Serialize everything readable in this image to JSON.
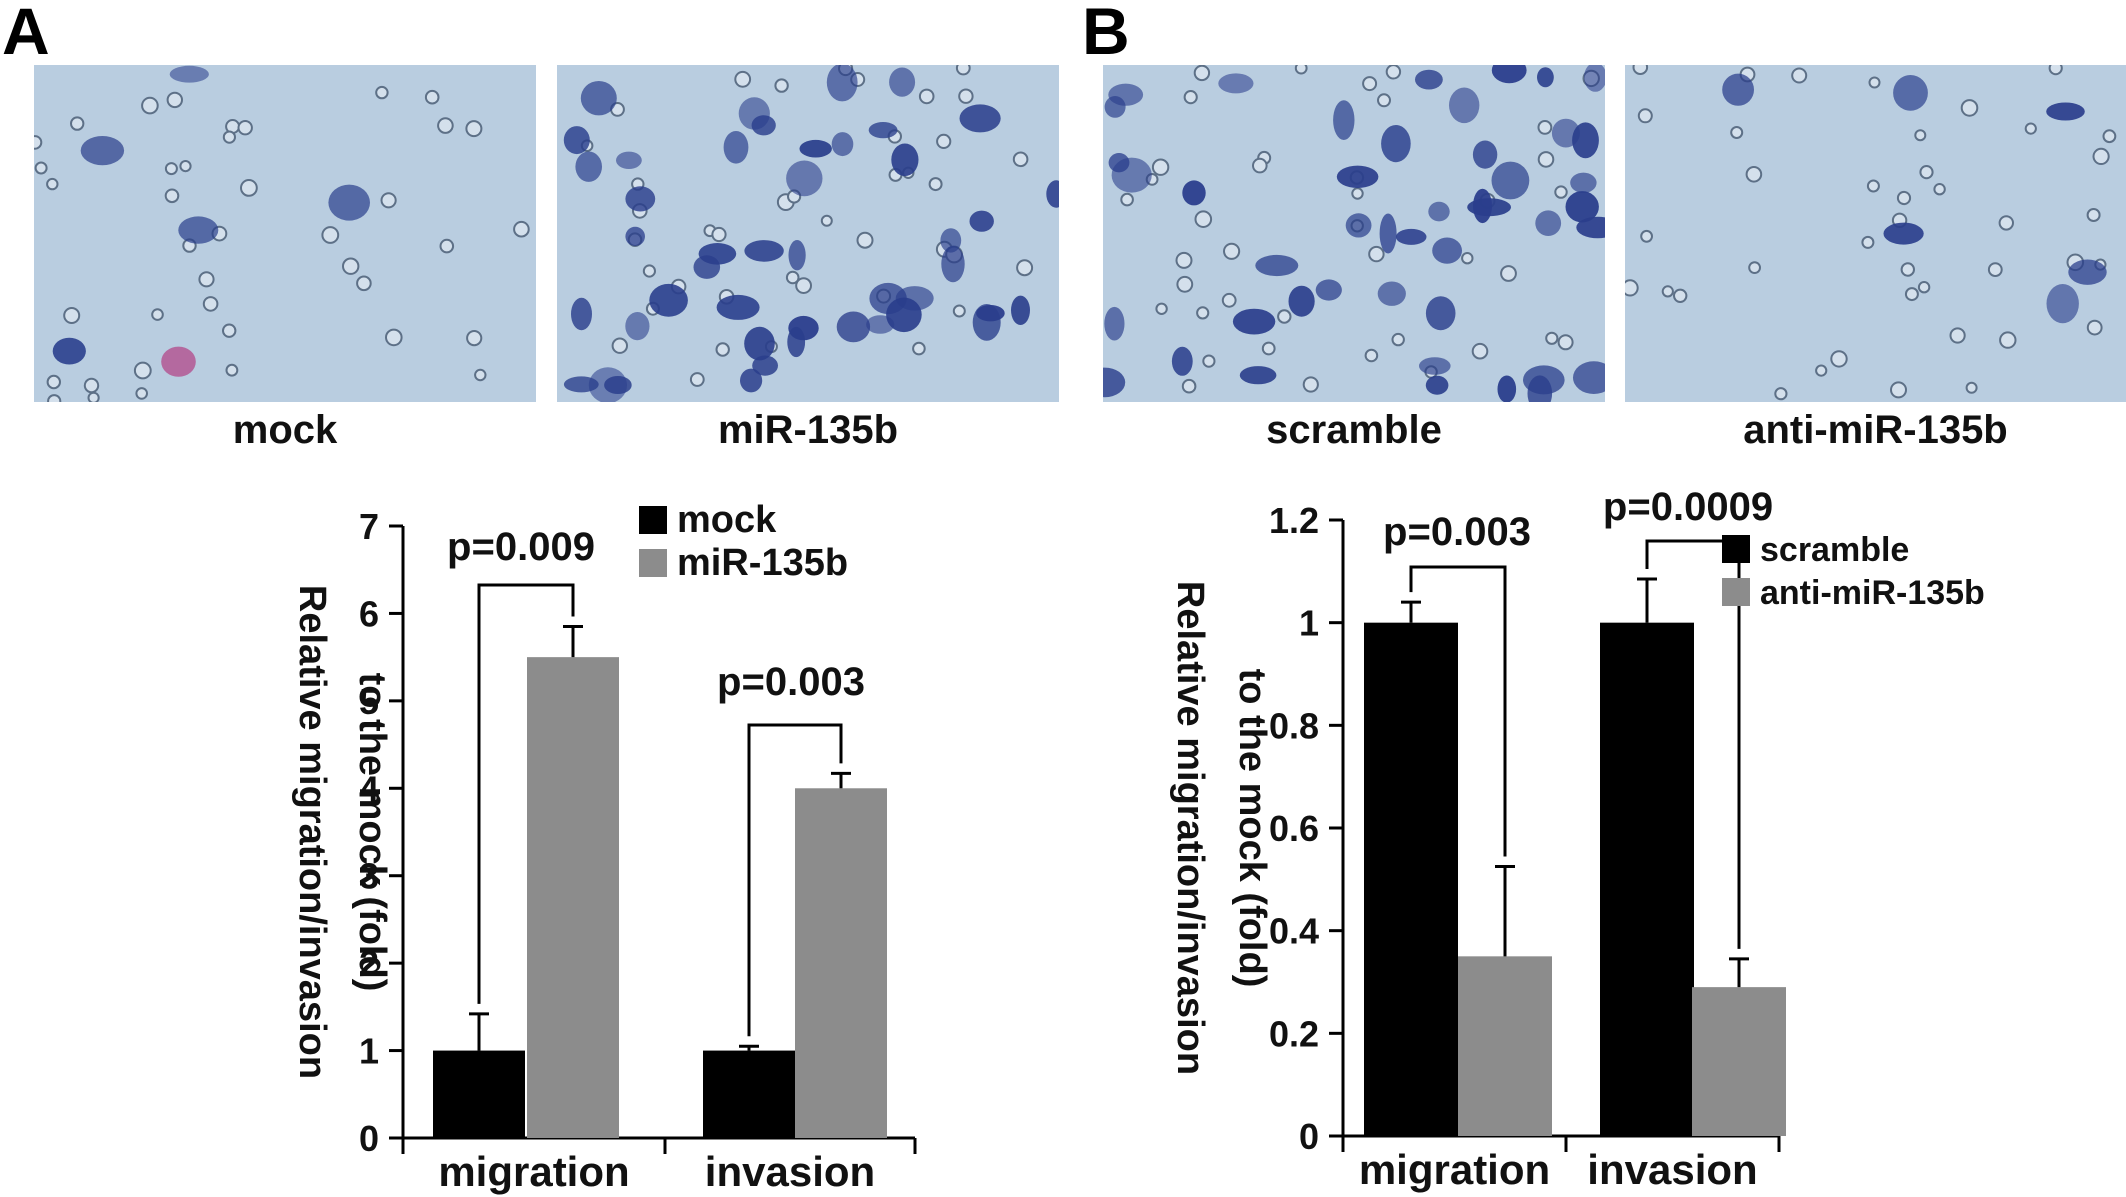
{
  "panels": [
    {
      "letter": "A"
    },
    {
      "letter": "B"
    }
  ],
  "micrographs": [
    {
      "label": "mock",
      "density": "low",
      "stain": "pink"
    },
    {
      "label": "miR-135b",
      "density": "high",
      "stain": "blue"
    },
    {
      "label": "scramble",
      "density": "high",
      "stain": "blue"
    },
    {
      "label": "anti-miR-135b",
      "density": "low",
      "stain": "blue"
    }
  ],
  "colors": {
    "series_dark": "#000000",
    "series_light": "#8c8c8c",
    "micrograph_bg": "#b9cde0",
    "cell_blue": "#2a3e8c",
    "cell_pink": "#b0307a"
  },
  "chart_data": [
    {
      "type": "bar",
      "categories": [
        "migration",
        "invasion"
      ],
      "series": [
        {
          "name": "mock",
          "values": [
            1.0,
            1.0
          ],
          "errors": [
            0.42,
            0.05
          ]
        },
        {
          "name": "miR-135b",
          "values": [
            5.5,
            4.0
          ],
          "errors": [
            0.35,
            0.17
          ]
        }
      ],
      "ylim": [
        0,
        7
      ],
      "yticks": [
        "0",
        "1",
        "2",
        "3",
        "4",
        "5",
        "6",
        "7"
      ],
      "ylabel_line1": "Relative migration/invasion",
      "ylabel_line2": "to the mock (fold)",
      "xlabel": "",
      "annotations": [
        "p=0.009",
        "p=0.003"
      ],
      "legend_position": "top-right",
      "grid": false
    },
    {
      "type": "bar",
      "categories": [
        "migration",
        "invasion"
      ],
      "series": [
        {
          "name": "scramble",
          "values": [
            1.0,
            1.0
          ],
          "errors": [
            0.04,
            0.085
          ]
        },
        {
          "name": "anti-miR-135b",
          "values": [
            0.35,
            0.29
          ],
          "errors": [
            0.175,
            0.055
          ]
        }
      ],
      "ylim": [
        0,
        1.2
      ],
      "yticks": [
        "0",
        "0.2",
        "0.4",
        "0.6",
        "0.8",
        "1",
        "1.2"
      ],
      "ylabel_line1": "Relative migration/invasion",
      "ylabel_line2": "to the mock (fold)",
      "xlabel": "",
      "annotations": [
        "p=0.003",
        "p=0.0009"
      ],
      "legend_position": "top-right",
      "grid": false
    }
  ]
}
